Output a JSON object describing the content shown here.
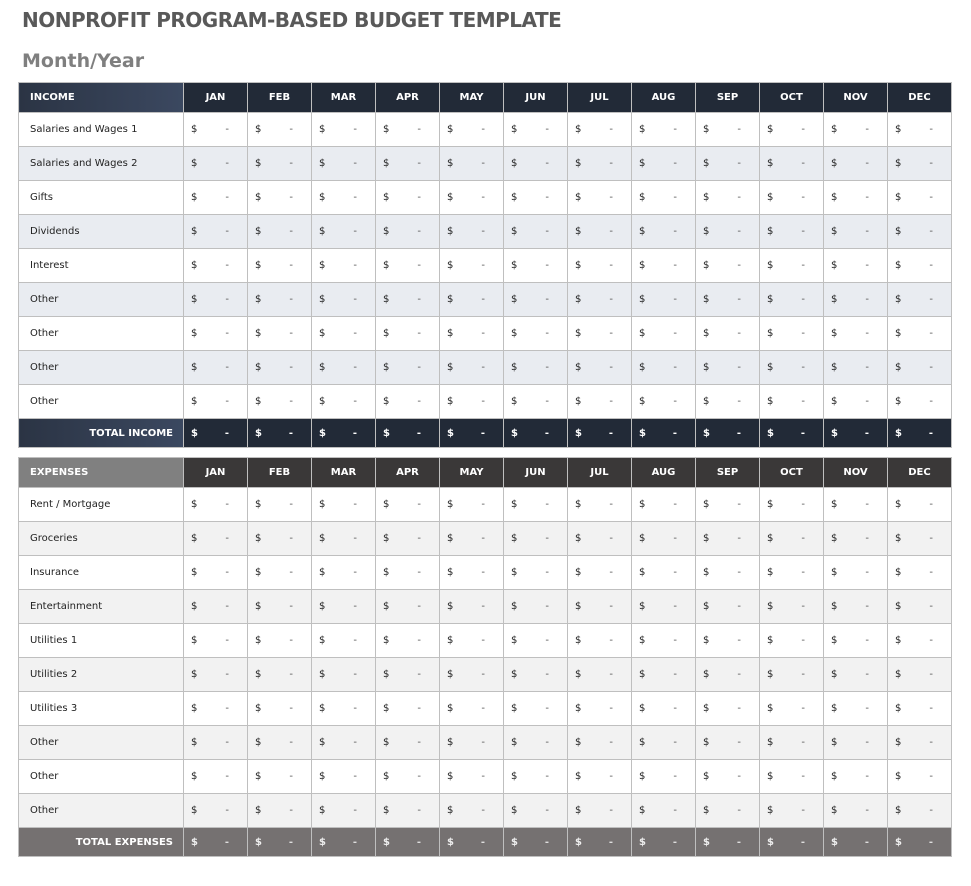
{
  "title": "NONPROFIT PROGRAM-BASED BUDGET TEMPLATE",
  "subtitle": "Month/Year",
  "months": [
    "JAN",
    "FEB",
    "MAR",
    "APR",
    "MAY",
    "JUN",
    "JUL",
    "AUG",
    "SEP",
    "OCT",
    "NOV",
    "DEC"
  ],
  "currency": "$",
  "income": {
    "header": "INCOME",
    "rows": [
      {
        "label": "Salaries and Wages 1",
        "values": [
          "-",
          "-",
          "-",
          "-",
          "-",
          "-",
          "-",
          "-",
          "-",
          "-",
          "-",
          "-"
        ]
      },
      {
        "label": "Salaries and Wages 2",
        "values": [
          "-",
          "-",
          "-",
          "-",
          "-",
          "-",
          "-",
          "-",
          "-",
          "-",
          "-",
          "-"
        ]
      },
      {
        "label": "Gifts",
        "values": [
          "-",
          "-",
          "-",
          "-",
          "-",
          "-",
          "-",
          "-",
          "-",
          "-",
          "-",
          "-"
        ]
      },
      {
        "label": "Dividends",
        "values": [
          "-",
          "-",
          "-",
          "-",
          "-",
          "-",
          "-",
          "-",
          "-",
          "-",
          "-",
          "-"
        ]
      },
      {
        "label": "Interest",
        "values": [
          "-",
          "-",
          "-",
          "-",
          "-",
          "-",
          "-",
          "-",
          "-",
          "-",
          "-",
          "-"
        ]
      },
      {
        "label": "Other",
        "values": [
          "-",
          "-",
          "-",
          "-",
          "-",
          "-",
          "-",
          "-",
          "-",
          "-",
          "-",
          "-"
        ]
      },
      {
        "label": "Other",
        "values": [
          "-",
          "-",
          "-",
          "-",
          "-",
          "-",
          "-",
          "-",
          "-",
          "-",
          "-",
          "-"
        ]
      },
      {
        "label": "Other",
        "values": [
          "-",
          "-",
          "-",
          "-",
          "-",
          "-",
          "-",
          "-",
          "-",
          "-",
          "-",
          "-"
        ]
      },
      {
        "label": "Other",
        "values": [
          "-",
          "-",
          "-",
          "-",
          "-",
          "-",
          "-",
          "-",
          "-",
          "-",
          "-",
          "-"
        ]
      }
    ],
    "total": {
      "label": "TOTAL INCOME",
      "values": [
        "-",
        "-",
        "-",
        "-",
        "-",
        "-",
        "-",
        "-",
        "-",
        "-",
        "-",
        "-"
      ]
    }
  },
  "expenses": {
    "header": "EXPENSES",
    "rows": [
      {
        "label": "Rent / Mortgage",
        "values": [
          "-",
          "-",
          "-",
          "-",
          "-",
          "-",
          "-",
          "-",
          "-",
          "-",
          "-",
          "-"
        ]
      },
      {
        "label": "Groceries",
        "values": [
          "-",
          "-",
          "-",
          "-",
          "-",
          "-",
          "-",
          "-",
          "-",
          "-",
          "-",
          "-"
        ]
      },
      {
        "label": "Insurance",
        "values": [
          "-",
          "-",
          "-",
          "-",
          "-",
          "-",
          "-",
          "-",
          "-",
          "-",
          "-",
          "-"
        ]
      },
      {
        "label": "Entertainment",
        "values": [
          "-",
          "-",
          "-",
          "-",
          "-",
          "-",
          "-",
          "-",
          "-",
          "-",
          "-",
          "-"
        ]
      },
      {
        "label": "Utilities 1",
        "values": [
          "-",
          "-",
          "-",
          "-",
          "-",
          "-",
          "-",
          "-",
          "-",
          "-",
          "-",
          "-"
        ]
      },
      {
        "label": "Utilities 2",
        "values": [
          "-",
          "-",
          "-",
          "-",
          "-",
          "-",
          "-",
          "-",
          "-",
          "-",
          "-",
          "-"
        ]
      },
      {
        "label": "Utilities 3",
        "values": [
          "-",
          "-",
          "-",
          "-",
          "-",
          "-",
          "-",
          "-",
          "-",
          "-",
          "-",
          "-"
        ]
      },
      {
        "label": "Other",
        "values": [
          "-",
          "-",
          "-",
          "-",
          "-",
          "-",
          "-",
          "-",
          "-",
          "-",
          "-",
          "-"
        ]
      },
      {
        "label": "Other",
        "values": [
          "-",
          "-",
          "-",
          "-",
          "-",
          "-",
          "-",
          "-",
          "-",
          "-",
          "-",
          "-"
        ]
      },
      {
        "label": "Other",
        "values": [
          "-",
          "-",
          "-",
          "-",
          "-",
          "-",
          "-",
          "-",
          "-",
          "-",
          "-",
          "-"
        ]
      }
    ],
    "total": {
      "label": "TOTAL EXPENSES",
      "values": [
        "-",
        "-",
        "-",
        "-",
        "-",
        "-",
        "-",
        "-",
        "-",
        "-",
        "-",
        "-"
      ]
    }
  }
}
